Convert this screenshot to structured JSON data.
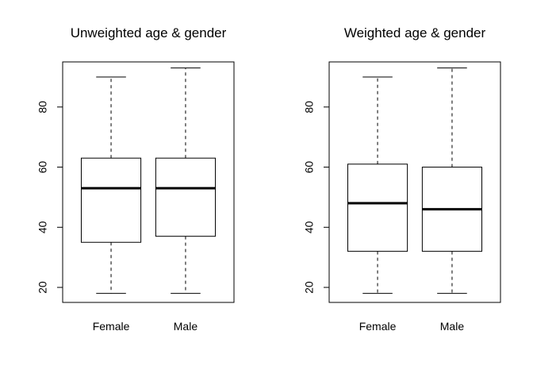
{
  "chart_data": [
    {
      "type": "box",
      "title": "Unweighted age & gender",
      "xlabel": "",
      "ylabel": "",
      "categories": [
        "Female",
        "Male"
      ],
      "ylim": [
        15,
        95
      ],
      "yticks": [
        20,
        40,
        60,
        80
      ],
      "grid": false,
      "boxes": [
        {
          "category": "Female",
          "min": 18,
          "q1": 35,
          "median": 53,
          "q3": 63,
          "max": 90
        },
        {
          "category": "Male",
          "min": 18,
          "q1": 37,
          "median": 53,
          "q3": 63,
          "max": 93
        }
      ]
    },
    {
      "type": "box",
      "title": "Weighted age & gender",
      "xlabel": "",
      "ylabel": "",
      "categories": [
        "Female",
        "Male"
      ],
      "ylim": [
        15,
        95
      ],
      "yticks": [
        20,
        40,
        60,
        80
      ],
      "grid": false,
      "boxes": [
        {
          "category": "Female",
          "min": 18,
          "q1": 32,
          "median": 48,
          "q3": 61,
          "max": 90
        },
        {
          "category": "Male",
          "min": 18,
          "q1": 32,
          "median": 46,
          "q3": 60,
          "max": 93
        }
      ]
    }
  ]
}
